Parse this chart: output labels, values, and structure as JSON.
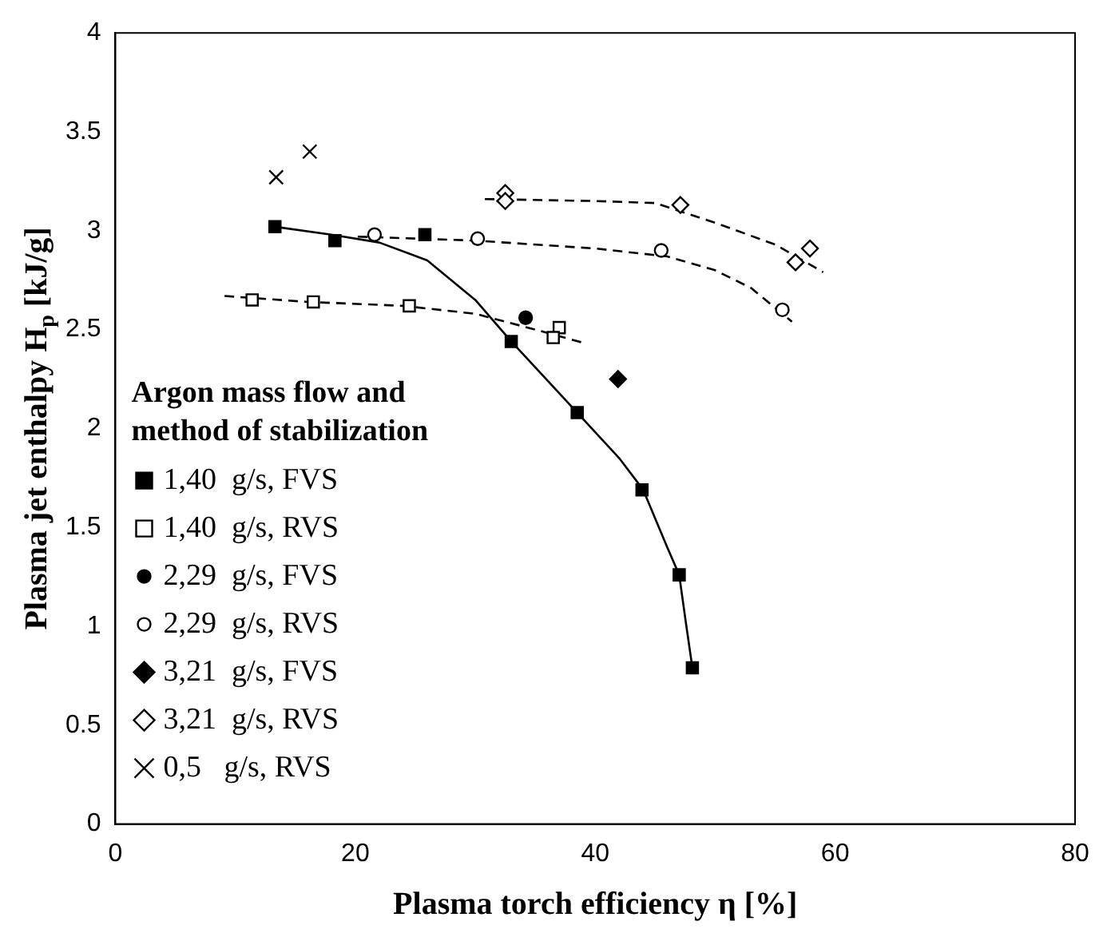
{
  "chart_data": {
    "type": "scatter",
    "xlabel": "Plasma torch efficiency η [%]",
    "ylabel": "Plasma jet enthalpy H$_{p}$ [kJ/g]",
    "legend_title": "Argon mass flow and method of stabilization",
    "xlim": [
      0,
      80
    ],
    "xticks": [
      0,
      20,
      40,
      60,
      80
    ],
    "ylim": [
      0,
      4
    ],
    "yticks": [
      0,
      {
        "value": 0.5,
        "label": "0.5"
      },
      1,
      {
        "value": 1.5,
        "label": "1.5"
      },
      2,
      {
        "value": 2.5,
        "label": "2.5"
      },
      3,
      {
        "value": 3.5,
        "label": "3.5"
      },
      4
    ],
    "grid": false,
    "legend": "left",
    "series": [
      {
        "name": "1,40  g/s, FVS",
        "color": "#000000",
        "marker": "square",
        "x": [
          13.3,
          18.3,
          25.8,
          33.0,
          38.5,
          43.9,
          47.0,
          48.1
        ],
        "values": [
          3.02,
          2.95,
          2.98,
          2.44,
          2.08,
          1.69,
          1.26,
          0.79
        ]
      },
      {
        "name": "1,40  g/s, RVS",
        "color": "#ffffff",
        "marker": "square",
        "x": [
          11.4,
          16.5,
          24.5,
          37.0,
          36.5
        ],
        "values": [
          2.65,
          2.64,
          2.62,
          2.51,
          2.46
        ]
      },
      {
        "name": "2,29  g/s, FVS",
        "color": "#000000",
        "marker": "circle",
        "x": [
          34.2
        ],
        "values": [
          2.56
        ]
      },
      {
        "name": "2,29  g/s, RVS",
        "color": "#ffffff",
        "marker": "circle",
        "x": [
          21.6,
          30.2,
          45.5,
          55.6
        ],
        "values": [
          2.98,
          2.96,
          2.9,
          2.6
        ]
      },
      {
        "name": "3,21  g/s, FVS",
        "color": "#000000",
        "marker": "diamond",
        "x": [
          41.9
        ],
        "values": [
          2.25
        ]
      },
      {
        "name": "3,21  g/s, RVS",
        "color": "#ffffff",
        "marker": "diamond",
        "x": [
          32.5,
          32.5,
          47.1,
          57.9,
          56.7
        ],
        "values": [
          3.19,
          3.15,
          3.13,
          2.91,
          2.84
        ]
      },
      {
        "name": "0,5   g/s, RVS",
        "color": "#000000",
        "marker": "cross",
        "x": [
          13.4,
          16.2
        ],
        "values": [
          3.27,
          3.4
        ]
      },
      {
        "type": "line",
        "color": "#000000",
        "marker": "none",
        "line_style": "solid",
        "x": [
          13.3,
          18,
          22,
          26,
          30,
          33,
          38.5,
          42,
          44,
          46,
          47,
          47.6,
          48.1
        ],
        "values": [
          3.02,
          2.98,
          2.94,
          2.85,
          2.65,
          2.44,
          2.08,
          1.85,
          1.69,
          1.4,
          1.26,
          1.0,
          0.79
        ]
      },
      {
        "type": "line",
        "color": "#000000",
        "marker": "none",
        "line_style": "dashed",
        "x": [
          9.1,
          16,
          24,
          30,
          35,
          39.2
        ],
        "values": [
          2.67,
          2.64,
          2.62,
          2.58,
          2.5,
          2.43
        ]
      },
      {
        "type": "line",
        "color": "#000000",
        "marker": "none",
        "line_style": "dashed",
        "x": [
          20.2,
          30,
          40,
          46,
          50,
          53,
          56.4
        ],
        "values": [
          2.97,
          2.95,
          2.91,
          2.87,
          2.8,
          2.71,
          2.54
        ]
      },
      {
        "type": "line",
        "color": "#000000",
        "marker": "none",
        "line_style": "dashed",
        "x": [
          30.8,
          40,
          45,
          50,
          55,
          59
        ],
        "values": [
          3.16,
          3.15,
          3.14,
          3.04,
          2.93,
          2.79
        ]
      }
    ]
  }
}
